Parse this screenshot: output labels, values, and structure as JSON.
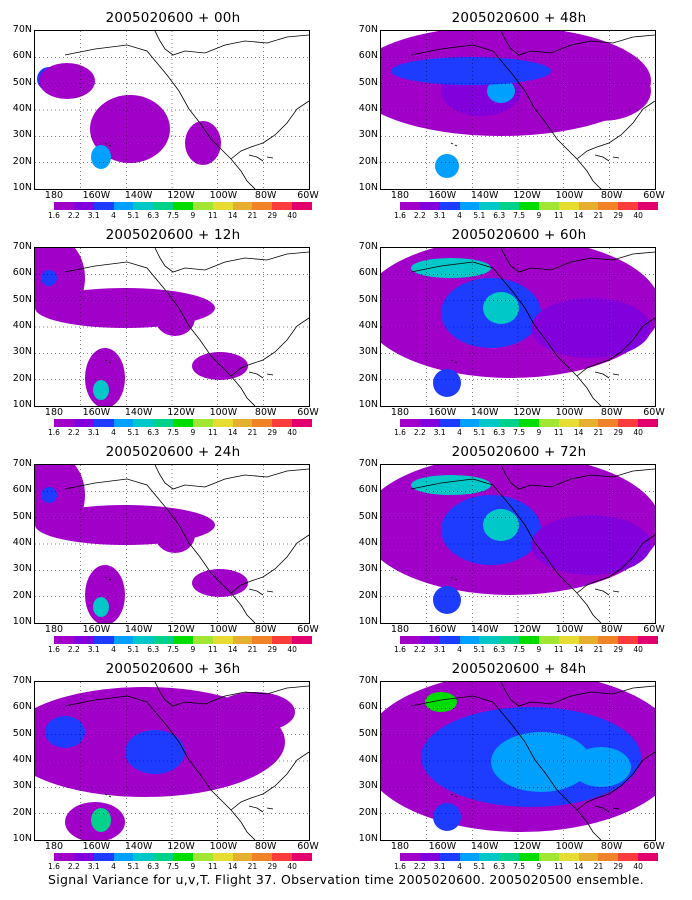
{
  "panels": [
    {
      "title": "2005020600 + 00h",
      "level": 0
    },
    {
      "title": "2005020600 + 48h",
      "level": 3
    },
    {
      "title": "2005020600 + 12h",
      "level": 1
    },
    {
      "title": "2005020600 + 60h",
      "level": 4
    },
    {
      "title": "2005020600 + 24h",
      "level": 1
    },
    {
      "title": "2005020600 + 72h",
      "level": 4
    },
    {
      "title": "2005020600 + 36h",
      "level": 2
    },
    {
      "title": "2005020600 + 84h",
      "level": 5
    }
  ],
  "lat_labels": [
    "70N",
    "60N",
    "50N",
    "40N",
    "30N",
    "20N",
    "10N"
  ],
  "lon_labels": [
    "180",
    "160W",
    "140W",
    "120W",
    "100W",
    "80W",
    "60W"
  ],
  "colorbar": {
    "labels": [
      "1.6",
      "2.2",
      "3.1",
      "4",
      "5.1",
      "6.3",
      "7.5",
      "9",
      "11",
      "14",
      "21",
      "29",
      "40"
    ],
    "colors": [
      "#a000c8",
      "#8200dc",
      "#1e3cff",
      "#00a0ff",
      "#00c8c8",
      "#00d28c",
      "#00dc00",
      "#a0e632",
      "#e6dc32",
      "#e6af2d",
      "#f08228",
      "#fa3c3c",
      "#e1006e"
    ]
  },
  "caption": "Signal Variance for u,v,T. Flight 37. Observation time 2005020600. 2005020500 ensemble."
}
